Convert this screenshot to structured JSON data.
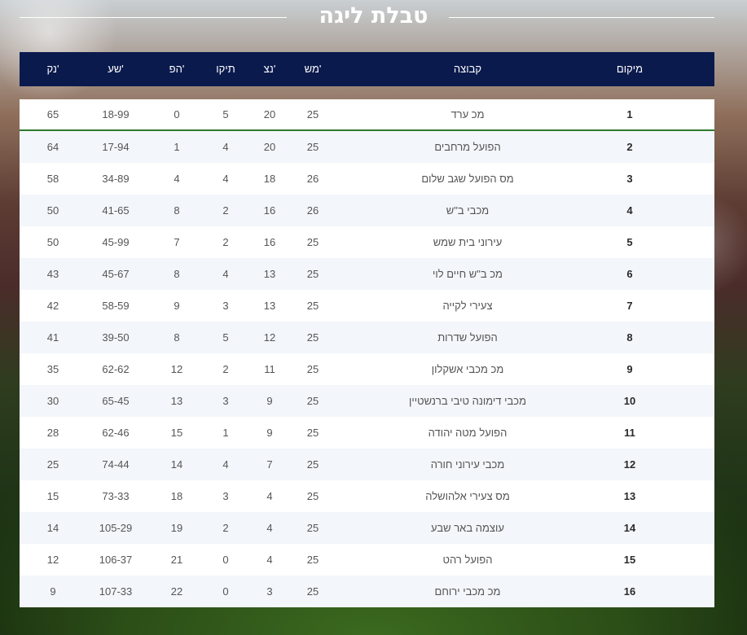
{
  "title": "טבלת ליגה",
  "table": {
    "headers": {
      "pos": "מיקום",
      "team": "קבוצה",
      "played": "מש'",
      "wins": "נצ'",
      "draws": "תיקו",
      "losses": "הפ'",
      "goals": "שע'",
      "points": "נק'"
    },
    "rows": [
      {
        "pos": "1",
        "team": "מכ ערד",
        "played": "25",
        "wins": "20",
        "draws": "5",
        "losses": "0",
        "goals": "18-99",
        "points": "65"
      },
      {
        "pos": "2",
        "team": "הפועל מרחבים",
        "played": "25",
        "wins": "20",
        "draws": "4",
        "losses": "1",
        "goals": "17-94",
        "points": "64"
      },
      {
        "pos": "3",
        "team": "מס הפועל שגב שלום",
        "played": "26",
        "wins": "18",
        "draws": "4",
        "losses": "4",
        "goals": "34-89",
        "points": "58"
      },
      {
        "pos": "4",
        "team": "מכבי ב\"ש",
        "played": "26",
        "wins": "16",
        "draws": "2",
        "losses": "8",
        "goals": "41-65",
        "points": "50"
      },
      {
        "pos": "5",
        "team": "עירוני בית שמש",
        "played": "25",
        "wins": "16",
        "draws": "2",
        "losses": "7",
        "goals": "45-99",
        "points": "50"
      },
      {
        "pos": "6",
        "team": "מכ ב\"ש חיים לוי",
        "played": "25",
        "wins": "13",
        "draws": "4",
        "losses": "8",
        "goals": "45-67",
        "points": "43"
      },
      {
        "pos": "7",
        "team": "צעירי לקייה",
        "played": "25",
        "wins": "13",
        "draws": "3",
        "losses": "9",
        "goals": "58-59",
        "points": "42"
      },
      {
        "pos": "8",
        "team": "הפועל שדרות",
        "played": "25",
        "wins": "12",
        "draws": "5",
        "losses": "8",
        "goals": "39-50",
        "points": "41"
      },
      {
        "pos": "9",
        "team": "מכ מכבי אשקלון",
        "played": "25",
        "wins": "11",
        "draws": "2",
        "losses": "12",
        "goals": "62-62",
        "points": "35"
      },
      {
        "pos": "10",
        "team": "מכבי דימונה טיבי ברנשטיין",
        "played": "25",
        "wins": "9",
        "draws": "3",
        "losses": "13",
        "goals": "65-45",
        "points": "30"
      },
      {
        "pos": "11",
        "team": "הפועל מטה יהודה",
        "played": "25",
        "wins": "9",
        "draws": "1",
        "losses": "15",
        "goals": "62-46",
        "points": "28"
      },
      {
        "pos": "12",
        "team": "מכבי עירוני חורה",
        "played": "25",
        "wins": "7",
        "draws": "4",
        "losses": "14",
        "goals": "74-44",
        "points": "25"
      },
      {
        "pos": "13",
        "team": "מס צעירי אלהושלה",
        "played": "25",
        "wins": "4",
        "draws": "3",
        "losses": "18",
        "goals": "73-33",
        "points": "15"
      },
      {
        "pos": "14",
        "team": "עוצמה באר שבע",
        "played": "25",
        "wins": "4",
        "draws": "2",
        "losses": "19",
        "goals": "105-29",
        "points": "14"
      },
      {
        "pos": "15",
        "team": "הפועל רהט",
        "played": "25",
        "wins": "4",
        "draws": "0",
        "losses": "21",
        "goals": "106-37",
        "points": "12"
      },
      {
        "pos": "16",
        "team": "מכ מכבי ירוחם",
        "played": "25",
        "wins": "3",
        "draws": "0",
        "losses": "22",
        "goals": "107-33",
        "points": "9"
      }
    ]
  },
  "colors": {
    "header_bg": "#0b1a4d",
    "leader_line": "#2f7a2f",
    "row_alt": "#f3f6fa"
  }
}
